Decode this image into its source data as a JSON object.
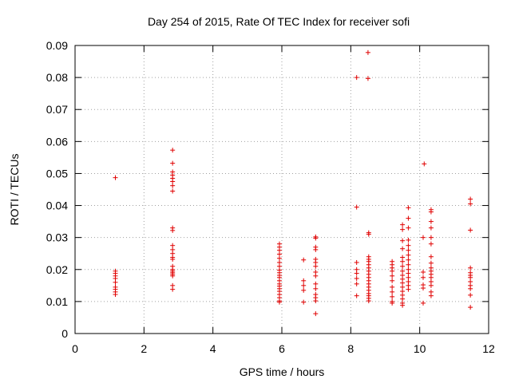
{
  "chart_data": {
    "type": "scatter",
    "title": "Day 254 of 2015, Rate Of TEC Index for receiver sofi",
    "xlabel": "GPS time / hours",
    "ylabel": "ROTI / TECUs",
    "xlim": [
      0,
      12
    ],
    "ylim": [
      0,
      0.09
    ],
    "xticks": [
      0,
      2,
      4,
      6,
      8,
      10,
      12
    ],
    "yticks": [
      0,
      0.01,
      0.02,
      0.03,
      0.04,
      0.05,
      0.06,
      0.07,
      0.08,
      0.09
    ],
    "xtick_labels": [
      "0",
      "2",
      "4",
      "6",
      "8",
      "10",
      "12"
    ],
    "ytick_labels": [
      "0",
      "0.01",
      "0.02",
      "0.03",
      "0.04",
      "0.05",
      "0.06",
      "0.07",
      "0.08",
      "0.09"
    ],
    "grid": true,
    "marker": "+",
    "series": [
      {
        "name": "ROTI",
        "color": "#e00000",
        "points": [
          [
            1.17,
            0.0487
          ],
          [
            1.17,
            0.0195
          ],
          [
            1.17,
            0.0188
          ],
          [
            1.17,
            0.018
          ],
          [
            1.17,
            0.0172
          ],
          [
            1.17,
            0.016
          ],
          [
            1.17,
            0.0145
          ],
          [
            1.17,
            0.0138
          ],
          [
            1.17,
            0.013
          ],
          [
            1.17,
            0.0122
          ],
          [
            2.83,
            0.0573
          ],
          [
            2.83,
            0.0532
          ],
          [
            2.83,
            0.0505
          ],
          [
            2.83,
            0.0495
          ],
          [
            2.83,
            0.0485
          ],
          [
            2.83,
            0.0475
          ],
          [
            2.83,
            0.0462
          ],
          [
            2.83,
            0.0445
          ],
          [
            2.83,
            0.033
          ],
          [
            2.83,
            0.0322
          ],
          [
            2.83,
            0.0275
          ],
          [
            2.83,
            0.0262
          ],
          [
            2.83,
            0.025
          ],
          [
            2.83,
            0.0238
          ],
          [
            2.83,
            0.0232
          ],
          [
            2.83,
            0.021
          ],
          [
            2.83,
            0.02
          ],
          [
            2.83,
            0.0195
          ],
          [
            2.83,
            0.019
          ],
          [
            2.83,
            0.0185
          ],
          [
            2.83,
            0.018
          ],
          [
            2.83,
            0.015
          ],
          [
            2.83,
            0.0138
          ],
          [
            5.93,
            0.028
          ],
          [
            5.93,
            0.027
          ],
          [
            5.93,
            0.026
          ],
          [
            5.93,
            0.0248
          ],
          [
            5.93,
            0.0235
          ],
          [
            5.93,
            0.0222
          ],
          [
            5.93,
            0.021
          ],
          [
            5.93,
            0.0198
          ],
          [
            5.93,
            0.019
          ],
          [
            5.93,
            0.0182
          ],
          [
            5.93,
            0.0175
          ],
          [
            5.93,
            0.0165
          ],
          [
            5.93,
            0.0155
          ],
          [
            5.93,
            0.0148
          ],
          [
            5.93,
            0.014
          ],
          [
            5.93,
            0.0132
          ],
          [
            5.93,
            0.0122
          ],
          [
            5.93,
            0.0112
          ],
          [
            5.93,
            0.0102
          ],
          [
            5.93,
            0.0098
          ],
          [
            6.63,
            0.023
          ],
          [
            6.63,
            0.0165
          ],
          [
            6.63,
            0.015
          ],
          [
            6.63,
            0.0135
          ],
          [
            6.63,
            0.0098
          ],
          [
            6.98,
            0.0302
          ],
          [
            6.98,
            0.0298
          ],
          [
            6.98,
            0.027
          ],
          [
            6.98,
            0.0262
          ],
          [
            6.98,
            0.0232
          ],
          [
            6.98,
            0.0222
          ],
          [
            6.98,
            0.021
          ],
          [
            6.98,
            0.0192
          ],
          [
            6.98,
            0.018
          ],
          [
            6.98,
            0.0155
          ],
          [
            6.98,
            0.014
          ],
          [
            6.98,
            0.0122
          ],
          [
            6.98,
            0.0112
          ],
          [
            6.98,
            0.0102
          ],
          [
            6.98,
            0.0062
          ],
          [
            8.17,
            0.08
          ],
          [
            8.17,
            0.0395
          ],
          [
            8.17,
            0.0222
          ],
          [
            8.17,
            0.02
          ],
          [
            8.17,
            0.0188
          ],
          [
            8.17,
            0.0172
          ],
          [
            8.17,
            0.0155
          ],
          [
            8.17,
            0.0118
          ],
          [
            8.5,
            0.0878
          ],
          [
            8.5,
            0.0797
          ],
          [
            8.52,
            0.0315
          ],
          [
            8.52,
            0.031
          ],
          [
            8.52,
            0.024
          ],
          [
            8.52,
            0.0232
          ],
          [
            8.52,
            0.0225
          ],
          [
            8.52,
            0.0215
          ],
          [
            8.52,
            0.0205
          ],
          [
            8.52,
            0.0195
          ],
          [
            8.52,
            0.0185
          ],
          [
            8.52,
            0.0175
          ],
          [
            8.52,
            0.0165
          ],
          [
            8.52,
            0.0155
          ],
          [
            8.52,
            0.0145
          ],
          [
            8.52,
            0.0135
          ],
          [
            8.52,
            0.0125
          ],
          [
            8.52,
            0.0118
          ],
          [
            8.52,
            0.011
          ],
          [
            8.52,
            0.0102
          ],
          [
            9.2,
            0.0225
          ],
          [
            9.2,
            0.0215
          ],
          [
            9.2,
            0.0205
          ],
          [
            9.2,
            0.0195
          ],
          [
            9.2,
            0.018
          ],
          [
            9.2,
            0.0165
          ],
          [
            9.2,
            0.0145
          ],
          [
            9.2,
            0.013
          ],
          [
            9.2,
            0.0115
          ],
          [
            9.2,
            0.01
          ],
          [
            9.2,
            0.0095
          ],
          [
            9.5,
            0.034
          ],
          [
            9.5,
            0.0325
          ],
          [
            9.5,
            0.029
          ],
          [
            9.5,
            0.0265
          ],
          [
            9.5,
            0.0238
          ],
          [
            9.5,
            0.0225
          ],
          [
            9.5,
            0.021
          ],
          [
            9.5,
            0.0195
          ],
          [
            9.5,
            0.0182
          ],
          [
            9.5,
            0.017
          ],
          [
            9.5,
            0.0158
          ],
          [
            9.5,
            0.0145
          ],
          [
            9.5,
            0.0132
          ],
          [
            9.5,
            0.012
          ],
          [
            9.5,
            0.0108
          ],
          [
            9.5,
            0.0095
          ],
          [
            9.5,
            0.0088
          ],
          [
            9.67,
            0.0393
          ],
          [
            9.67,
            0.036
          ],
          [
            9.67,
            0.033
          ],
          [
            9.67,
            0.0292
          ],
          [
            9.67,
            0.0275
          ],
          [
            9.67,
            0.026
          ],
          [
            9.67,
            0.0245
          ],
          [
            9.67,
            0.023
          ],
          [
            9.67,
            0.0215
          ],
          [
            9.67,
            0.02
          ],
          [
            9.67,
            0.0188
          ],
          [
            9.67,
            0.0175
          ],
          [
            9.67,
            0.0162
          ],
          [
            9.67,
            0.015
          ],
          [
            9.67,
            0.0138
          ],
          [
            10.13,
            0.053
          ],
          [
            10.1,
            0.03
          ],
          [
            10.1,
            0.0192
          ],
          [
            10.1,
            0.0175
          ],
          [
            10.1,
            0.0152
          ],
          [
            10.1,
            0.0142
          ],
          [
            10.1,
            0.0095
          ],
          [
            10.33,
            0.0387
          ],
          [
            10.33,
            0.038
          ],
          [
            10.33,
            0.035
          ],
          [
            10.33,
            0.033
          ],
          [
            10.33,
            0.03
          ],
          [
            10.33,
            0.028
          ],
          [
            10.33,
            0.024
          ],
          [
            10.33,
            0.022
          ],
          [
            10.33,
            0.0205
          ],
          [
            10.33,
            0.0195
          ],
          [
            10.33,
            0.0185
          ],
          [
            10.33,
            0.0175
          ],
          [
            10.33,
            0.0162
          ],
          [
            10.33,
            0.015
          ],
          [
            10.33,
            0.013
          ],
          [
            10.33,
            0.0118
          ],
          [
            11.47,
            0.042
          ],
          [
            11.47,
            0.0405
          ],
          [
            11.47,
            0.0323
          ],
          [
            11.47,
            0.0205
          ],
          [
            11.47,
            0.019
          ],
          [
            11.47,
            0.0182
          ],
          [
            11.47,
            0.0175
          ],
          [
            11.47,
            0.0162
          ],
          [
            11.47,
            0.015
          ],
          [
            11.47,
            0.014
          ],
          [
            11.47,
            0.012
          ],
          [
            11.47,
            0.0082
          ]
        ]
      }
    ]
  }
}
